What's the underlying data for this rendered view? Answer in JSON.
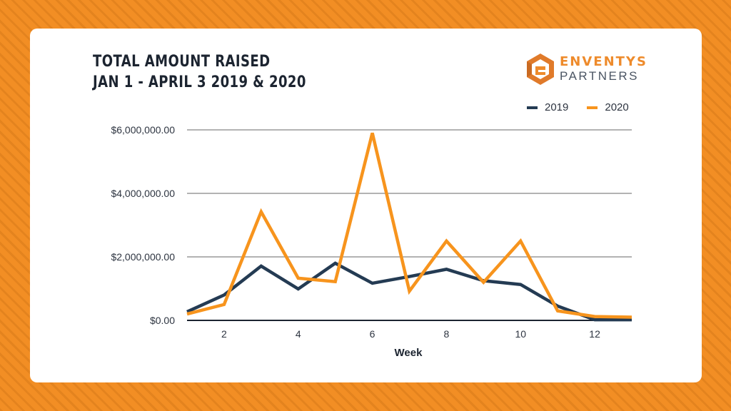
{
  "header": {
    "title_line1": "TOTAL AMOUNT RAISED",
    "title_line2": "JAN 1 - APRIL 3 2019 & 2020"
  },
  "logo": {
    "line1": "ENVENTYS",
    "line2": "PARTNERS",
    "icon": "hexagon-e-logo-icon"
  },
  "legend": [
    {
      "label": "2019",
      "color": "#243b53"
    },
    {
      "label": "2020",
      "color": "#f7941d"
    }
  ],
  "chart_data": {
    "type": "line",
    "title": "TOTAL AMOUNT RAISED JAN 1 - APRIL 3 2019 & 2020",
    "xlabel": "Week",
    "ylabel": "",
    "x": [
      1,
      2,
      3,
      4,
      5,
      6,
      7,
      8,
      9,
      10,
      11,
      12,
      13
    ],
    "x_ticks": [
      "2",
      "4",
      "6",
      "8",
      "10",
      "12"
    ],
    "y_ticks": [
      "$0.00",
      "$2,000,000.00",
      "$4,000,000.00",
      "$6,000,000.00"
    ],
    "ylim": [
      0,
      6000000
    ],
    "xlim": [
      1,
      13
    ],
    "grid": true,
    "legend_position": "top-right",
    "series": [
      {
        "name": "2019",
        "color": "#243b53",
        "values": [
          270000,
          800000,
          1710000,
          990000,
          1800000,
          1170000,
          1380000,
          1610000,
          1250000,
          1130000,
          450000,
          20000,
          20000
        ]
      },
      {
        "name": "2020",
        "color": "#f7941d",
        "values": [
          200000,
          500000,
          3420000,
          1330000,
          1220000,
          5900000,
          920000,
          2500000,
          1200000,
          2500000,
          300000,
          120000,
          100000
        ]
      }
    ]
  }
}
